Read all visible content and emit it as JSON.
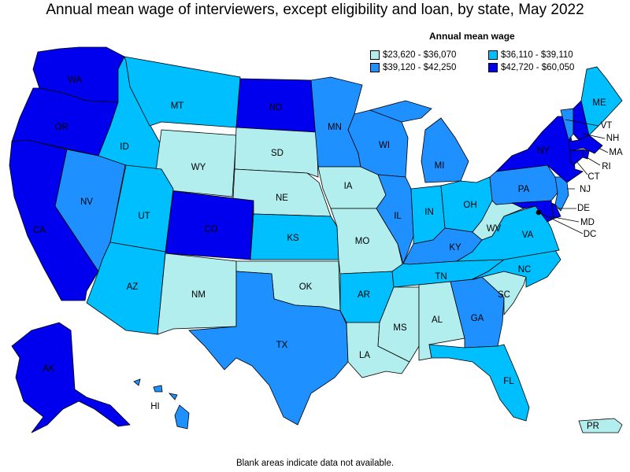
{
  "title": "Annual mean wage of interviewers, except eligibility and loan, by state, May 2022",
  "legend": {
    "title": "Annual mean wage",
    "bins": [
      {
        "label": "$23,620 - $36,070",
        "color": "#b2eeee"
      },
      {
        "label": "$36,110 - $39,110",
        "color": "#00bfff"
      },
      {
        "label": "$39,120 - $42,250",
        "color": "#1e90ff"
      },
      {
        "label": "$42,720 - $60,050",
        "color": "#0000ee"
      }
    ]
  },
  "footer": "Blank areas indicate data not available.",
  "states": [
    {
      "abbr": "WA",
      "bin": 3
    },
    {
      "abbr": "OR",
      "bin": 3
    },
    {
      "abbr": "CA",
      "bin": 3
    },
    {
      "abbr": "NV",
      "bin": 2
    },
    {
      "abbr": "ID",
      "bin": 1
    },
    {
      "abbr": "MT",
      "bin": 1
    },
    {
      "abbr": "WY",
      "bin": 0
    },
    {
      "abbr": "UT",
      "bin": 1
    },
    {
      "abbr": "AZ",
      "bin": 1
    },
    {
      "abbr": "CO",
      "bin": 3
    },
    {
      "abbr": "NM",
      "bin": 0
    },
    {
      "abbr": "ND",
      "bin": 3
    },
    {
      "abbr": "SD",
      "bin": 0
    },
    {
      "abbr": "NE",
      "bin": 0
    },
    {
      "abbr": "KS",
      "bin": 1
    },
    {
      "abbr": "OK",
      "bin": 0
    },
    {
      "abbr": "TX",
      "bin": 2
    },
    {
      "abbr": "MN",
      "bin": 2
    },
    {
      "abbr": "IA",
      "bin": 0
    },
    {
      "abbr": "MO",
      "bin": 0
    },
    {
      "abbr": "AR",
      "bin": 1
    },
    {
      "abbr": "LA",
      "bin": 0
    },
    {
      "abbr": "WI",
      "bin": 2
    },
    {
      "abbr": "IL",
      "bin": 2
    },
    {
      "abbr": "MI",
      "bin": 2
    },
    {
      "abbr": "IN",
      "bin": 1
    },
    {
      "abbr": "OH",
      "bin": 1
    },
    {
      "abbr": "KY",
      "bin": 2
    },
    {
      "abbr": "TN",
      "bin": 1
    },
    {
      "abbr": "MS",
      "bin": 0
    },
    {
      "abbr": "AL",
      "bin": 0
    },
    {
      "abbr": "GA",
      "bin": 2
    },
    {
      "abbr": "FL",
      "bin": 1
    },
    {
      "abbr": "SC",
      "bin": 0
    },
    {
      "abbr": "NC",
      "bin": 1
    },
    {
      "abbr": "VA",
      "bin": 1
    },
    {
      "abbr": "WV",
      "bin": 0
    },
    {
      "abbr": "PA",
      "bin": 2
    },
    {
      "abbr": "NY",
      "bin": 3
    },
    {
      "abbr": "VT",
      "bin": 2
    },
    {
      "abbr": "NH",
      "bin": 3
    },
    {
      "abbr": "ME",
      "bin": 1
    },
    {
      "abbr": "MA",
      "bin": 3
    },
    {
      "abbr": "RI",
      "bin": 3
    },
    {
      "abbr": "CT",
      "bin": 3
    },
    {
      "abbr": "NJ",
      "bin": 2
    },
    {
      "abbr": "DE",
      "bin": 3
    },
    {
      "abbr": "MD",
      "bin": 3
    },
    {
      "abbr": "DC",
      "bin": 3
    },
    {
      "abbr": "AK",
      "bin": 3
    },
    {
      "abbr": "HI",
      "bin": 2
    },
    {
      "abbr": "PR",
      "bin": 0
    }
  ]
}
